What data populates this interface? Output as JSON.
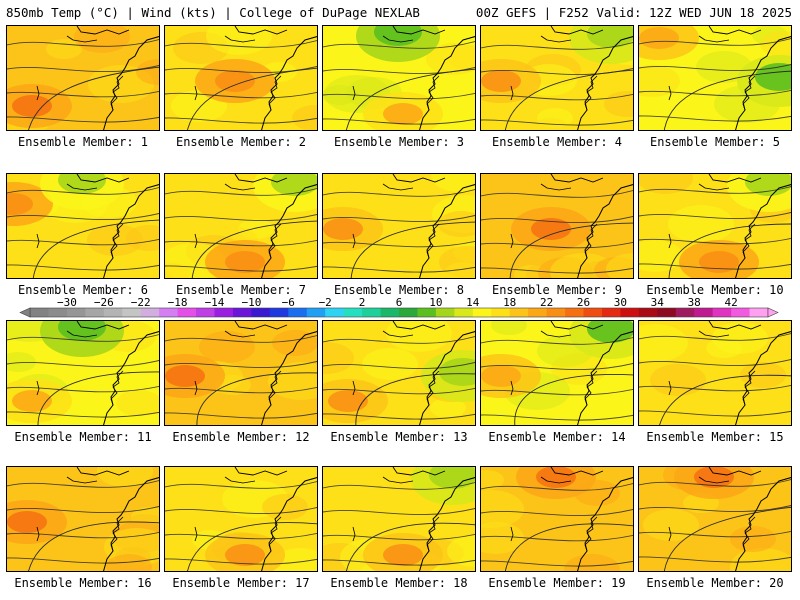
{
  "header": {
    "left": "850mb Temp (°C) | Wind (kts) | College of DuPage NEXLAB",
    "right": "00Z GEFS | F252 Valid: 12Z WED JUN 18 2025"
  },
  "member_label_prefix": "Ensemble Member: ",
  "members": [
    {
      "id": 1,
      "label": "Ensemble Member: 1",
      "base_temp": 17,
      "hot": "southwest",
      "cool": "none"
    },
    {
      "id": 2,
      "label": "Ensemble Member: 2",
      "base_temp": 16,
      "hot": "center",
      "cool": "none"
    },
    {
      "id": 3,
      "label": "Ensemble Member: 3",
      "base_temp": 13,
      "hot": "south",
      "cool": "north"
    },
    {
      "id": 4,
      "label": "Ensemble Member: 4",
      "base_temp": 15,
      "hot": "west",
      "cool": "northeast"
    },
    {
      "id": 5,
      "label": "Ensemble Member: 5",
      "base_temp": 14,
      "hot": "northwest",
      "cool": "east"
    },
    {
      "id": 6,
      "label": "Ensemble Member: 6",
      "base_temp": 16,
      "hot": "west-edge",
      "cool": "north"
    },
    {
      "id": 7,
      "label": "Ensemble Member: 7",
      "base_temp": 16,
      "hot": "south",
      "cool": "northeast"
    },
    {
      "id": 8,
      "label": "Ensemble Member: 8",
      "base_temp": 15,
      "hot": "west",
      "cool": "none"
    },
    {
      "id": 9,
      "label": "Ensemble Member: 9",
      "base_temp": 17,
      "hot": "center",
      "cool": "none"
    },
    {
      "id": 10,
      "label": "Ensemble Member: 10",
      "base_temp": 16,
      "hot": "south",
      "cool": "northeast"
    },
    {
      "id": 11,
      "label": "Ensemble Member: 11",
      "base_temp": 13,
      "hot": "southwest",
      "cool": "north"
    },
    {
      "id": 12,
      "label": "Ensemble Member: 12",
      "base_temp": 17,
      "hot": "west",
      "cool": "none"
    },
    {
      "id": 13,
      "label": "Ensemble Member: 13",
      "base_temp": 15,
      "hot": "southwest",
      "cool": "east"
    },
    {
      "id": 14,
      "label": "Ensemble Member: 14",
      "base_temp": 14,
      "hot": "west",
      "cool": "northeast"
    },
    {
      "id": 15,
      "label": "Ensemble Member: 15",
      "base_temp": 16,
      "hot": "none",
      "cool": "none"
    },
    {
      "id": 16,
      "label": "Ensemble Member: 16",
      "base_temp": 17,
      "hot": "west",
      "cool": "none"
    },
    {
      "id": 17,
      "label": "Ensemble Member: 17",
      "base_temp": 15,
      "hot": "south",
      "cool": "none"
    },
    {
      "id": 18,
      "label": "Ensemble Member: 18",
      "base_temp": 15,
      "hot": "south",
      "cool": "northeast"
    },
    {
      "id": 19,
      "label": "Ensemble Member: 19",
      "base_temp": 17,
      "hot": "north",
      "cool": "none"
    },
    {
      "id": 20,
      "label": "Ensemble Member: 20",
      "base_temp": 17,
      "hot": "north",
      "cool": "none"
    }
  ],
  "colorbar": {
    "ticks": [
      "-30",
      "-26",
      "-22",
      "-18",
      "-14",
      "-10",
      "-6",
      "-2",
      "2",
      "6",
      "10",
      "14",
      "18",
      "22",
      "26",
      "30",
      "34",
      "38",
      "42"
    ],
    "colors": [
      "#828282",
      "#8c8c8c",
      "#969696",
      "#a6a6a6",
      "#b4b4b4",
      "#c4c4c4",
      "#d2aee0",
      "#d47ef2",
      "#e34fe8",
      "#c03ee6",
      "#9a1fe0",
      "#6b16d8",
      "#3a1ad0",
      "#1e3ae0",
      "#1a6ef0",
      "#20a0f5",
      "#2ed2f2",
      "#25e0c0",
      "#1ed09a",
      "#1ab868",
      "#2aa83a",
      "#5cbf20",
      "#a6d61a",
      "#d8e81a",
      "#fbf51a",
      "#fde018",
      "#fcc418",
      "#fba716",
      "#f98e14",
      "#f67012",
      "#f04e10",
      "#e42a10",
      "#cc1010",
      "#aa0a14",
      "#8e0a20",
      "#a01a60",
      "#c01a90",
      "#e034c0",
      "#f25ae0",
      "#ffa0f0"
    ]
  },
  "colors": {
    "contour": "#2a2a2a",
    "coast": "#000000",
    "warm_hot": "#ee5a14",
    "warm_mid": "#f9a216",
    "warm_light": "#fbd818",
    "cool_green": "#a6d61a",
    "cool_teal": "#1ed09a"
  }
}
